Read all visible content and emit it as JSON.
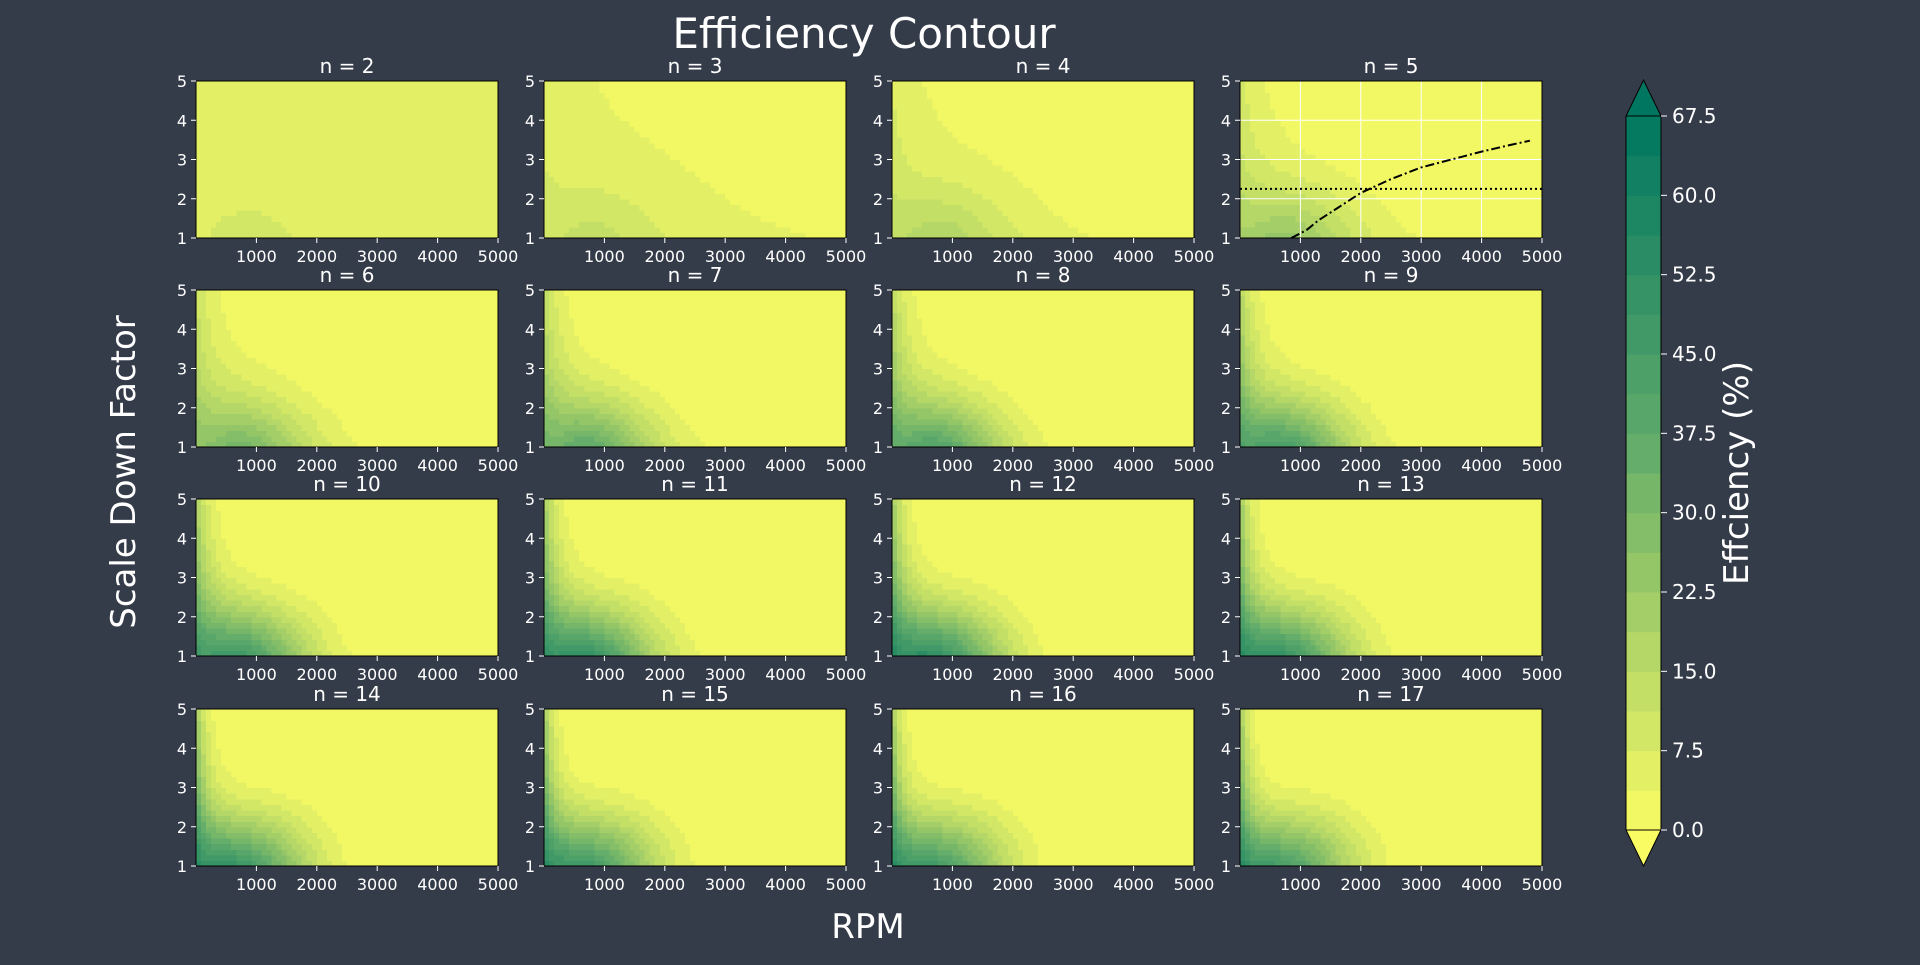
{
  "title": "Efficiency Contour",
  "xlabel": "RPM",
  "ylabel": "Scale Down Factor",
  "colorbar": {
    "label": "Effciency (%)",
    "ticks": [
      "0.0",
      "7.5",
      "15.0",
      "22.5",
      "30.0",
      "37.5",
      "45.0",
      "52.5",
      "60.0",
      "67.5"
    ],
    "range": [
      0,
      67.5
    ],
    "step": 3.75,
    "extend": "both",
    "colors": {
      "low": "#fafc64",
      "mid": "#5faa6a",
      "high": "#007660"
    }
  },
  "chart_data": {
    "type": "heatmap",
    "grid": {
      "rows": 4,
      "cols": 4
    },
    "x_ticks": [
      "1000",
      "2000",
      "3000",
      "4000",
      "5000"
    ],
    "y_ticks": [
      "1",
      "2",
      "3",
      "4",
      "5"
    ],
    "xlim": [
      0,
      5000
    ],
    "ylim": [
      1,
      5
    ],
    "panels": [
      {
        "title": "n = 2",
        "n": 2
      },
      {
        "title": "n = 3",
        "n": 3
      },
      {
        "title": "n = 4",
        "n": 4
      },
      {
        "title": "n = 5",
        "n": 5,
        "grid": true,
        "overlays": [
          {
            "style": "dotted",
            "x": [
              0,
              5000
            ],
            "y": [
              2.25,
              2.25
            ]
          },
          {
            "style": "dashdot",
            "x": [
              850,
              1100,
              1300,
              1600,
              2000,
              2500,
              3000,
              3500,
              4000,
              4500,
              4800
            ],
            "y": [
              1.0,
              1.2,
              1.45,
              1.75,
              2.15,
              2.5,
              2.8,
              3.0,
              3.2,
              3.38,
              3.48
            ]
          }
        ]
      },
      {
        "title": "n = 6",
        "n": 6
      },
      {
        "title": "n = 7",
        "n": 7
      },
      {
        "title": "n = 8",
        "n": 8
      },
      {
        "title": "n = 9",
        "n": 9
      },
      {
        "title": "n = 10",
        "n": 10
      },
      {
        "title": "n = 11",
        "n": 11
      },
      {
        "title": "n = 12",
        "n": 12
      },
      {
        "title": "n = 13",
        "n": 13
      },
      {
        "title": "n = 14",
        "n": 14
      },
      {
        "title": "n = 15",
        "n": 15
      },
      {
        "title": "n = 16",
        "n": 16
      },
      {
        "title": "n = 17",
        "n": 17
      }
    ]
  }
}
